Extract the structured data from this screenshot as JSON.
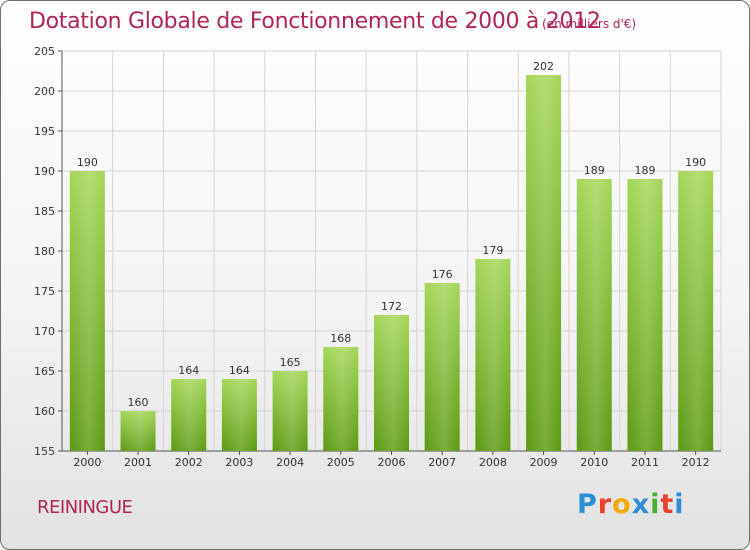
{
  "header": {
    "title": "Dotation Globale de Fonctionnement de 2000 à 2012",
    "subtitle": "(en milliers d'€)"
  },
  "footer": {
    "commune": "REININGUE",
    "logo_text": "Proxiti",
    "logo_colors": [
      "#2a8fd4",
      "#e8412c",
      "#f2a900",
      "#2a8fd4",
      "#4caf2e",
      "#e8412c",
      "#2a8fd4"
    ]
  },
  "colors": {
    "title": "#b0245a",
    "bar_top": "#a4d657",
    "bar_bottom": "#5c9a12",
    "grid": "#d4d4d4",
    "axis": "#555555"
  },
  "chart_data": {
    "type": "bar",
    "title": "Dotation Globale de Fonctionnement de 2000 à 2012",
    "subtitle": "(en milliers d'€)",
    "categories": [
      "2000",
      "2001",
      "2002",
      "2003",
      "2004",
      "2005",
      "2006",
      "2007",
      "2008",
      "2009",
      "2010",
      "2011",
      "2012"
    ],
    "values": [
      190,
      160,
      164,
      164,
      165,
      168,
      172,
      176,
      179,
      202,
      189,
      189,
      190
    ],
    "ylim": [
      155,
      205
    ],
    "yticks": [
      155,
      160,
      165,
      170,
      175,
      180,
      185,
      190,
      195,
      200,
      205
    ],
    "grid": true,
    "legend": "none"
  }
}
